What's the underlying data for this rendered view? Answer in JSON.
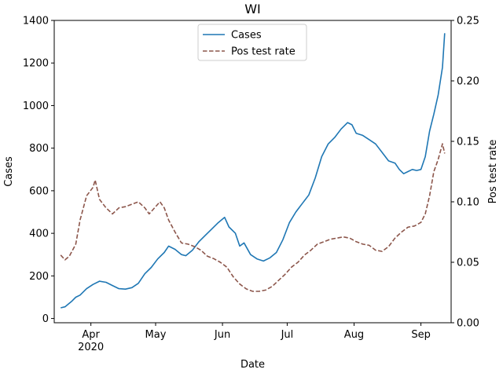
{
  "chart_data": {
    "type": "line",
    "title": "WI",
    "xlabel": "Date",
    "ylabel": "Cases",
    "y2label": "Pos test rate",
    "x_range": [
      "2020-03-15",
      "2020-09-15"
    ],
    "ylim": [
      -20,
      1400
    ],
    "y2lim": [
      0,
      0.25
    ],
    "x_ticks": [
      {
        "date": "2020-04-01",
        "label": "Apr",
        "sublabel": "2020"
      },
      {
        "date": "2020-05-01",
        "label": "May",
        "sublabel": ""
      },
      {
        "date": "2020-06-01",
        "label": "Jun",
        "sublabel": ""
      },
      {
        "date": "2020-07-01",
        "label": "Jul",
        "sublabel": ""
      },
      {
        "date": "2020-08-01",
        "label": "Aug",
        "sublabel": ""
      },
      {
        "date": "2020-09-01",
        "label": "Sep",
        "sublabel": ""
      }
    ],
    "y_ticks": [
      0,
      200,
      400,
      600,
      800,
      1000,
      1200,
      1400
    ],
    "y2_ticks": [
      "0.00",
      "0.05",
      "0.10",
      "0.15",
      "0.20",
      "0.25"
    ],
    "legend_position": "top-center",
    "series": [
      {
        "name": "Cases",
        "axis": "left",
        "color": "#1f77b4",
        "style": "solid",
        "points": [
          [
            "2020-03-18",
            50
          ],
          [
            "2020-03-20",
            55
          ],
          [
            "2020-03-23",
            80
          ],
          [
            "2020-03-25",
            100
          ],
          [
            "2020-03-27",
            110
          ],
          [
            "2020-03-30",
            140
          ],
          [
            "2020-04-02",
            160
          ],
          [
            "2020-04-05",
            175
          ],
          [
            "2020-04-08",
            170
          ],
          [
            "2020-04-11",
            155
          ],
          [
            "2020-04-14",
            140
          ],
          [
            "2020-04-17",
            138
          ],
          [
            "2020-04-20",
            145
          ],
          [
            "2020-04-23",
            165
          ],
          [
            "2020-04-26",
            210
          ],
          [
            "2020-04-29",
            240
          ],
          [
            "2020-05-02",
            280
          ],
          [
            "2020-05-05",
            310
          ],
          [
            "2020-05-07",
            340
          ],
          [
            "2020-05-10",
            325
          ],
          [
            "2020-05-13",
            300
          ],
          [
            "2020-05-15",
            295
          ],
          [
            "2020-05-18",
            320
          ],
          [
            "2020-05-21",
            360
          ],
          [
            "2020-05-24",
            390
          ],
          [
            "2020-05-27",
            420
          ],
          [
            "2020-05-30",
            450
          ],
          [
            "2020-06-02",
            475
          ],
          [
            "2020-06-04",
            430
          ],
          [
            "2020-06-07",
            400
          ],
          [
            "2020-06-09",
            340
          ],
          [
            "2020-06-11",
            355
          ],
          [
            "2020-06-14",
            300
          ],
          [
            "2020-06-17",
            280
          ],
          [
            "2020-06-20",
            270
          ],
          [
            "2020-06-23",
            285
          ],
          [
            "2020-06-26",
            310
          ],
          [
            "2020-06-29",
            370
          ],
          [
            "2020-07-02",
            450
          ],
          [
            "2020-07-05",
            500
          ],
          [
            "2020-07-08",
            540
          ],
          [
            "2020-07-11",
            580
          ],
          [
            "2020-07-14",
            660
          ],
          [
            "2020-07-17",
            760
          ],
          [
            "2020-07-20",
            820
          ],
          [
            "2020-07-23",
            850
          ],
          [
            "2020-07-26",
            890
          ],
          [
            "2020-07-29",
            920
          ],
          [
            "2020-07-31",
            910
          ],
          [
            "2020-08-02",
            870
          ],
          [
            "2020-08-05",
            860
          ],
          [
            "2020-08-08",
            840
          ],
          [
            "2020-08-11",
            820
          ],
          [
            "2020-08-14",
            780
          ],
          [
            "2020-08-17",
            740
          ],
          [
            "2020-08-20",
            730
          ],
          [
            "2020-08-22",
            700
          ],
          [
            "2020-08-24",
            680
          ],
          [
            "2020-08-26",
            690
          ],
          [
            "2020-08-28",
            700
          ],
          [
            "2020-08-30",
            695
          ],
          [
            "2020-09-01",
            700
          ],
          [
            "2020-09-03",
            760
          ],
          [
            "2020-09-05",
            880
          ],
          [
            "2020-09-07",
            960
          ],
          [
            "2020-09-09",
            1050
          ],
          [
            "2020-09-11",
            1180
          ],
          [
            "2020-09-12",
            1340
          ]
        ]
      },
      {
        "name": "Pos test rate",
        "axis": "right",
        "color": "#8c564b",
        "style": "dashed",
        "points": [
          [
            "2020-03-18",
            0.056
          ],
          [
            "2020-03-20",
            0.052
          ],
          [
            "2020-03-22",
            0.055
          ],
          [
            "2020-03-25",
            0.065
          ],
          [
            "2020-03-27",
            0.085
          ],
          [
            "2020-03-30",
            0.105
          ],
          [
            "2020-04-02",
            0.112
          ],
          [
            "2020-04-03",
            0.118
          ],
          [
            "2020-04-05",
            0.102
          ],
          [
            "2020-04-08",
            0.095
          ],
          [
            "2020-04-11",
            0.09
          ],
          [
            "2020-04-14",
            0.095
          ],
          [
            "2020-04-17",
            0.096
          ],
          [
            "2020-04-20",
            0.098
          ],
          [
            "2020-04-23",
            0.1
          ],
          [
            "2020-04-26",
            0.095
          ],
          [
            "2020-04-28",
            0.09
          ],
          [
            "2020-05-01",
            0.096
          ],
          [
            "2020-05-03",
            0.1
          ],
          [
            "2020-05-05",
            0.095
          ],
          [
            "2020-05-07",
            0.085
          ],
          [
            "2020-05-10",
            0.075
          ],
          [
            "2020-05-13",
            0.066
          ],
          [
            "2020-05-16",
            0.065
          ],
          [
            "2020-05-19",
            0.063
          ],
          [
            "2020-05-22",
            0.06
          ],
          [
            "2020-05-25",
            0.055
          ],
          [
            "2020-05-28",
            0.053
          ],
          [
            "2020-05-31",
            0.05
          ],
          [
            "2020-06-03",
            0.046
          ],
          [
            "2020-06-06",
            0.038
          ],
          [
            "2020-06-09",
            0.032
          ],
          [
            "2020-06-12",
            0.028
          ],
          [
            "2020-06-15",
            0.026
          ],
          [
            "2020-06-18",
            0.026
          ],
          [
            "2020-06-21",
            0.027
          ],
          [
            "2020-06-24",
            0.03
          ],
          [
            "2020-06-27",
            0.035
          ],
          [
            "2020-06-30",
            0.04
          ],
          [
            "2020-07-03",
            0.046
          ],
          [
            "2020-07-06",
            0.05
          ],
          [
            "2020-07-09",
            0.056
          ],
          [
            "2020-07-12",
            0.06
          ],
          [
            "2020-07-15",
            0.065
          ],
          [
            "2020-07-18",
            0.067
          ],
          [
            "2020-07-21",
            0.069
          ],
          [
            "2020-07-24",
            0.07
          ],
          [
            "2020-07-27",
            0.071
          ],
          [
            "2020-07-30",
            0.07
          ],
          [
            "2020-08-02",
            0.067
          ],
          [
            "2020-08-05",
            0.065
          ],
          [
            "2020-08-08",
            0.064
          ],
          [
            "2020-08-11",
            0.06
          ],
          [
            "2020-08-14",
            0.059
          ],
          [
            "2020-08-17",
            0.063
          ],
          [
            "2020-08-20",
            0.07
          ],
          [
            "2020-08-23",
            0.075
          ],
          [
            "2020-08-26",
            0.079
          ],
          [
            "2020-08-29",
            0.08
          ],
          [
            "2020-09-01",
            0.083
          ],
          [
            "2020-09-03",
            0.09
          ],
          [
            "2020-09-05",
            0.105
          ],
          [
            "2020-09-07",
            0.125
          ],
          [
            "2020-09-09",
            0.135
          ],
          [
            "2020-09-11",
            0.148
          ],
          [
            "2020-09-12",
            0.14
          ]
        ]
      }
    ]
  }
}
